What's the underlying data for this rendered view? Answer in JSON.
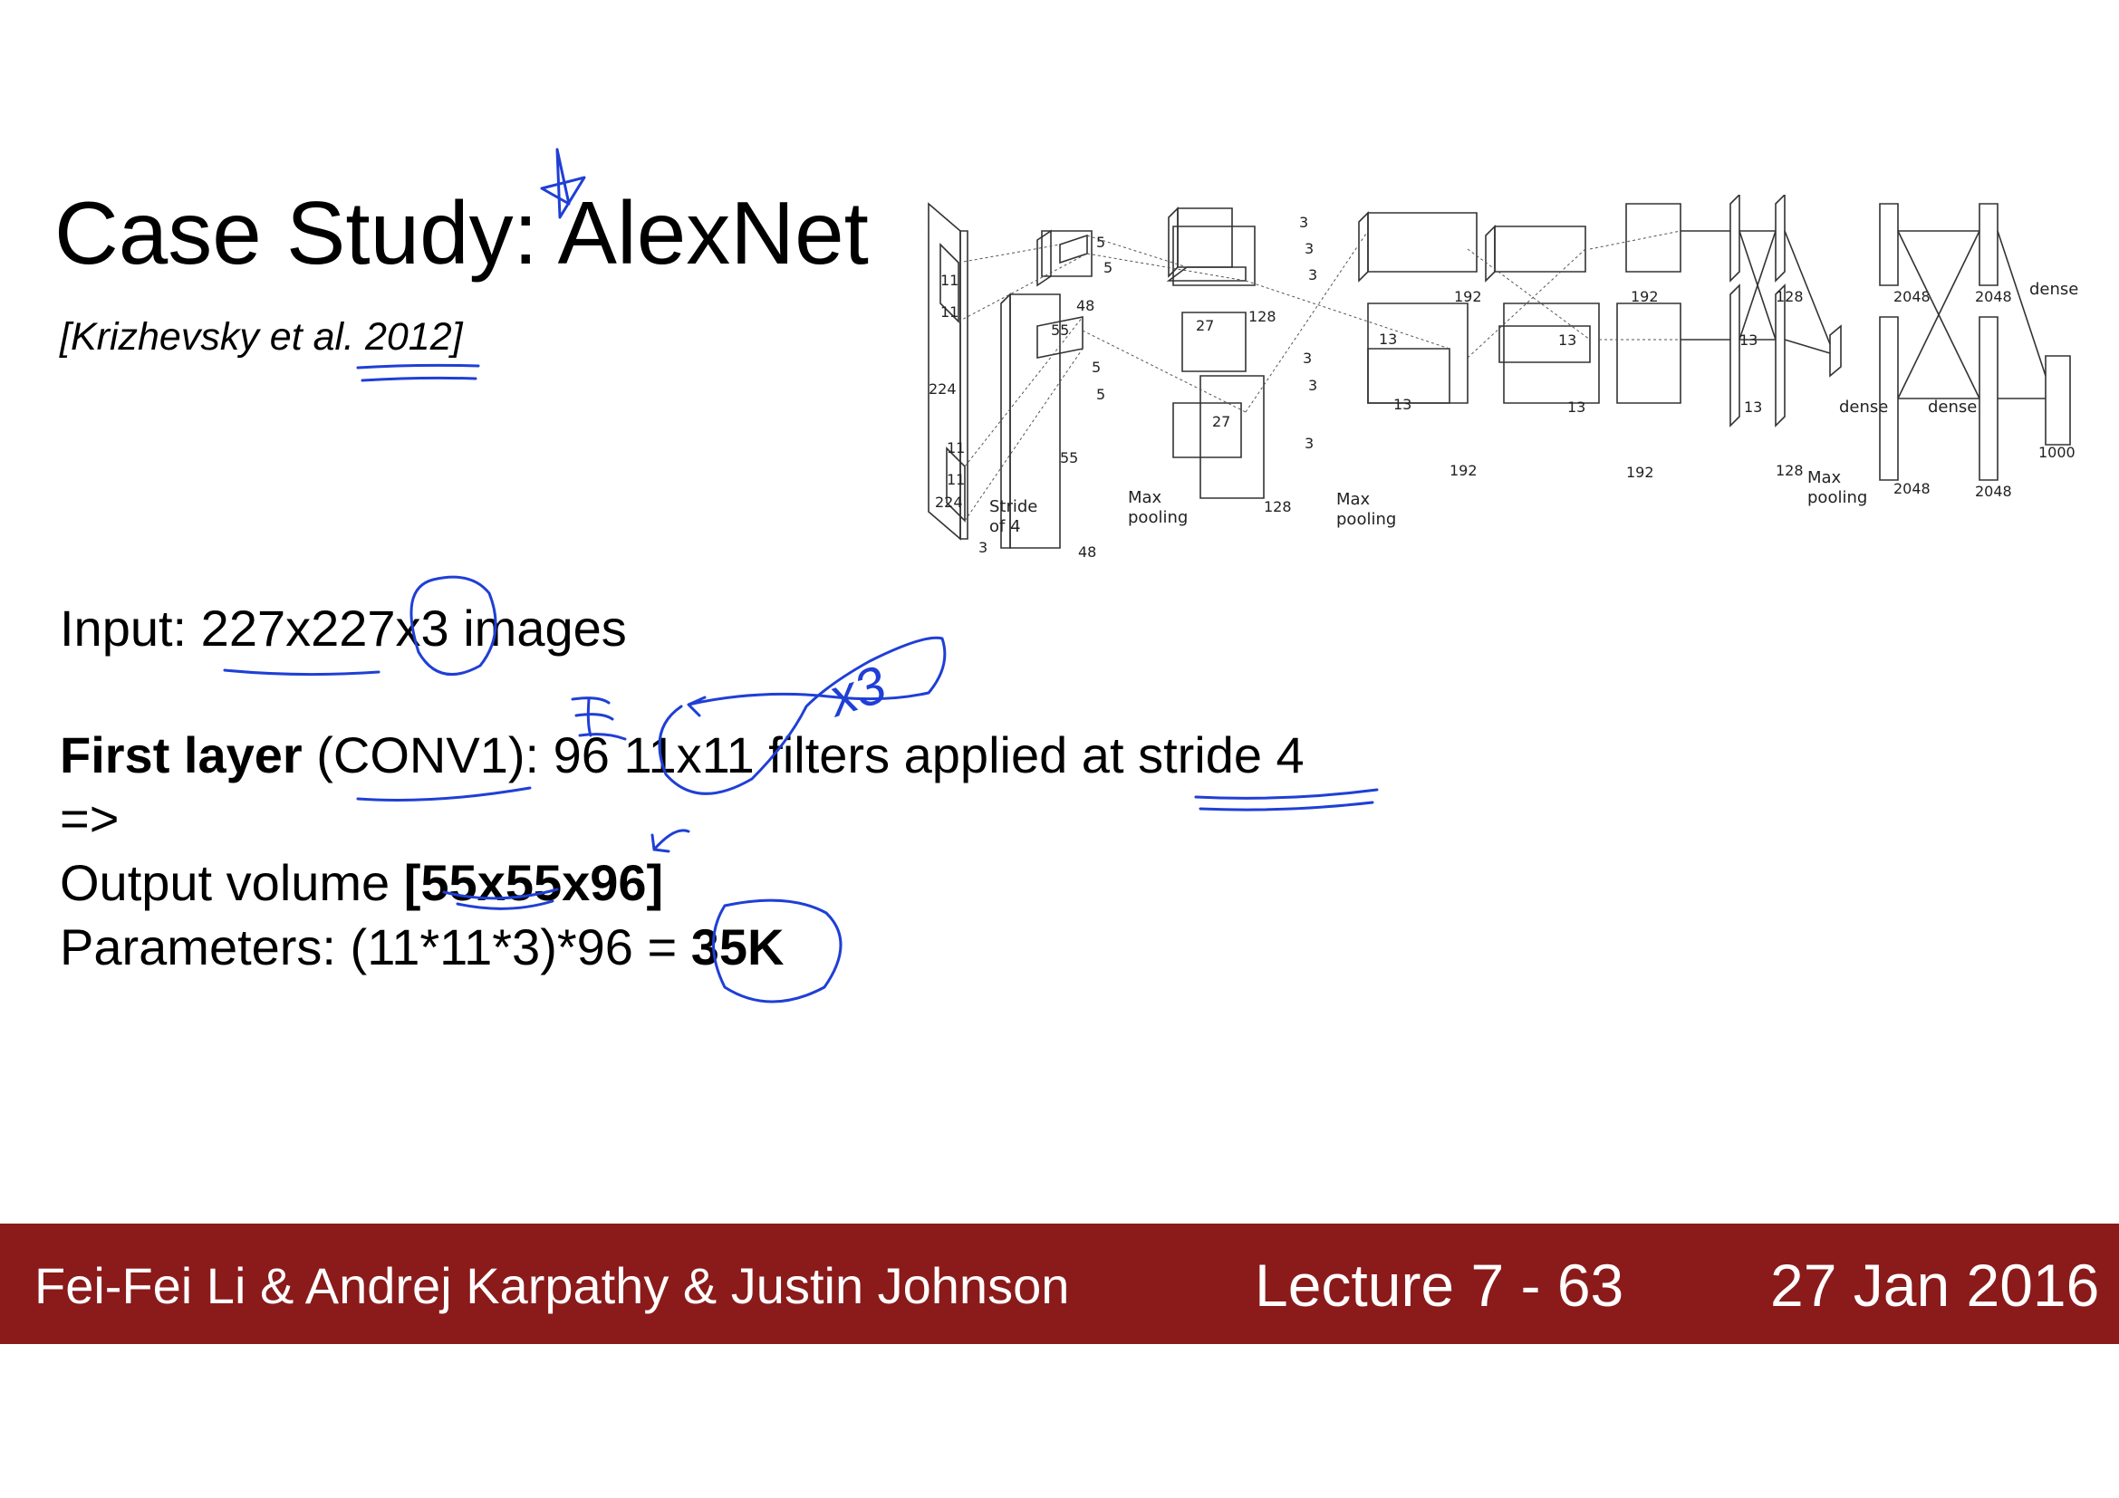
{
  "slide": {
    "title": "Case Study: AlexNet",
    "citation": "[Krizhevsky et al. 2012]"
  },
  "content": {
    "input_line": "Input: 227x227x3 images",
    "first_layer_bold": "First layer",
    "first_layer_rest": " (CONV1): 96 11x11 filters applied at stride 4",
    "arrow": "=>",
    "output_prefix": "Output volume ",
    "output_value": "[55x55x96]",
    "params_prefix": "Parameters: (11*11*3)*96 = ",
    "params_value": "35K"
  },
  "annotation": {
    "handwritten_x3": "x3"
  },
  "diagram": {
    "labels": {
      "in_224_a": "224",
      "in_224_b": "224",
      "in_3": "3",
      "k11_a": "11",
      "k11_b": "11",
      "k11_c": "11",
      "k11_d": "11",
      "stride": "Stride",
      "of4": "of 4",
      "c1_55_a": "55",
      "c1_55_b": "55",
      "c1_48_a": "48",
      "c1_48_b": "48",
      "k5_a": "5",
      "k5_b": "5",
      "k5_c": "5",
      "k5_d": "5",
      "maxpool1_a": "Max",
      "maxpool1_b": "pooling",
      "c2_27_a": "27",
      "c2_27_b": "27",
      "c2_128_a": "128",
      "c2_128_b": "128",
      "k3_a": "3",
      "k3_b": "3",
      "k3_c": "3",
      "k3_d": "3",
      "k3_e": "3",
      "k3_f": "3",
      "maxpool2_a": "Max",
      "maxpool2_b": "pooling",
      "c3_13_a": "13",
      "c3_13_b": "13",
      "c3_192_a": "192",
      "c3_192_b": "192",
      "c4_13_a": "13",
      "c4_13_b": "13",
      "c4_192_a": "192",
      "c4_192_b": "192",
      "c5_13_a": "13",
      "c5_13_b": "13",
      "c5_128_a": "128",
      "c5_128_b": "128",
      "maxpool3_a": "Max",
      "maxpool3_b": "pooling",
      "d_2048_a": "2048",
      "d_2048_b": "2048",
      "d_2048_c": "2048",
      "d_2048_d": "2048",
      "dense_a": "dense",
      "dense_b": "dense",
      "dense_c": "dense",
      "out_1000": "1000"
    }
  },
  "footer": {
    "authors": "Fei-Fei Li & Andrej Karpathy & Justin Johnson",
    "lecture": "Lecture 7 - 63",
    "date": "27 Jan 2016"
  },
  "colors": {
    "footer_bg": "#8b1a1a",
    "ink": "#1f3fd6"
  }
}
